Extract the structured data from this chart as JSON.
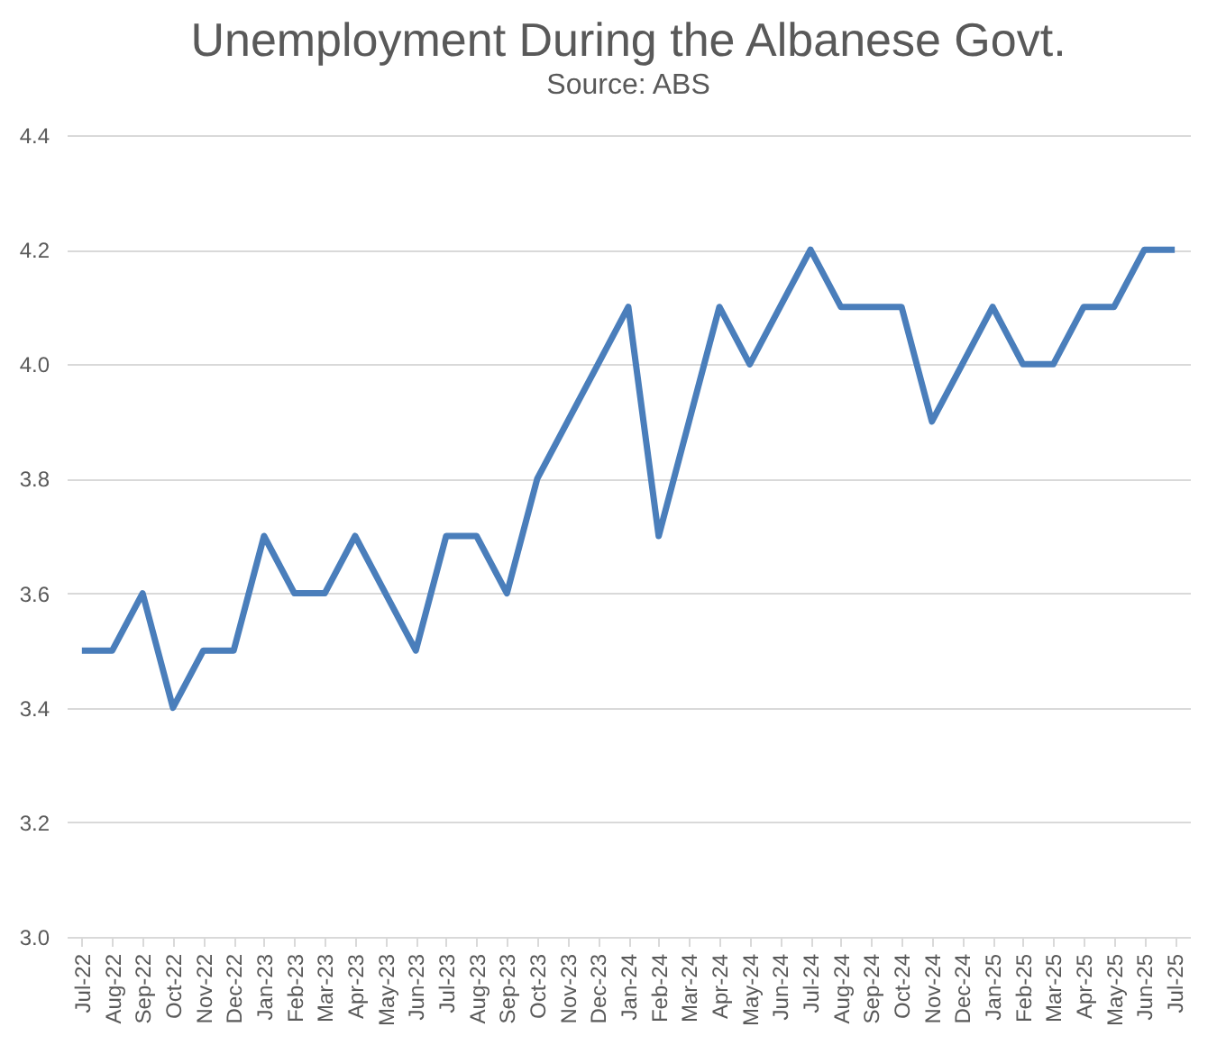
{
  "chart_data": {
    "type": "line",
    "title": "Unemployment During the Albanese Govt.",
    "subtitle": "Source: ABS",
    "categories": [
      "Jul-22",
      "Aug-22",
      "Sep-22",
      "Oct-22",
      "Nov-22",
      "Dec-22",
      "Jan-23",
      "Feb-23",
      "Mar-23",
      "Apr-23",
      "May-23",
      "Jun-23",
      "Jul-23",
      "Aug-23",
      "Sep-23",
      "Oct-23",
      "Nov-23",
      "Dec-23",
      "Jan-24",
      "Feb-24",
      "Mar-24",
      "Apr-24",
      "May-24",
      "Jun-24",
      "Jul-24",
      "Aug-24",
      "Sep-24",
      "Oct-24",
      "Nov-24",
      "Dec-24",
      "Jan-25",
      "Feb-25",
      "Mar-25",
      "Apr-25",
      "May-25",
      "Jun-25",
      "Jul-25"
    ],
    "series": [
      {
        "color": "#4a7ebb",
        "values": [
          3.5,
          3.5,
          3.6,
          3.4,
          3.5,
          3.5,
          3.7,
          3.6,
          3.6,
          3.7,
          3.6,
          3.5,
          3.7,
          3.7,
          3.6,
          3.8,
          3.9,
          4.0,
          4.1,
          3.7,
          3.9,
          4.1,
          4.0,
          4.1,
          4.2,
          4.1,
          4.1,
          4.1,
          3.9,
          4.0,
          4.1,
          4.0,
          4.0,
          4.1,
          4.1,
          4.2,
          4.2
        ]
      }
    ],
    "ylim": [
      3.0,
      4.4
    ],
    "yticks": [
      {
        "value": 3.0,
        "label": "3.0"
      },
      {
        "value": 3.2,
        "label": "3.2"
      },
      {
        "value": 3.4,
        "label": "3.4"
      },
      {
        "value": 3.6,
        "label": "3.6"
      },
      {
        "value": 3.8,
        "label": "3.8"
      },
      {
        "value": 4.0,
        "label": "4.0"
      },
      {
        "value": 4.2,
        "label": "4.2"
      },
      {
        "value": 4.4,
        "label": "4.4"
      }
    ],
    "grid": "y",
    "marker": "none",
    "line_style": "solid"
  }
}
